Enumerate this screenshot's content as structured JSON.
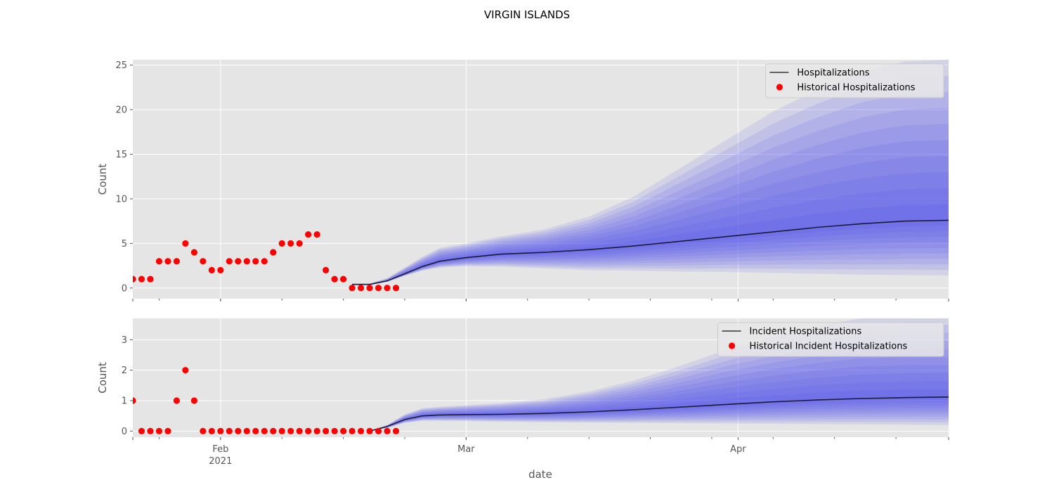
{
  "figure": {
    "title": "VIRGIN ISLANDS",
    "xlabel": "date"
  },
  "chart_data": [
    {
      "type": "line",
      "ylabel": "Count",
      "ylim": [
        -1.2,
        25.6
      ],
      "yticks": [
        0,
        5,
        10,
        15,
        20,
        25
      ],
      "grid": true,
      "legend_position": "top-right",
      "legend": [
        "Hospitalizations",
        "Historical Hospitalizations"
      ],
      "colors": {
        "historical": "#ff0000",
        "median": "#1a1a3a",
        "band": "#4a4af0",
        "plot_bg": "#e5e5e5",
        "grid": "#ffffff"
      },
      "historical": {
        "name": "Historical Hospitalizations",
        "x": [
          "2021-01-22",
          "2021-01-23",
          "2021-01-24",
          "2021-01-25",
          "2021-01-26",
          "2021-01-27",
          "2021-01-28",
          "2021-01-29",
          "2021-01-30",
          "2021-01-31",
          "2021-02-01",
          "2021-02-02",
          "2021-02-03",
          "2021-02-04",
          "2021-02-05",
          "2021-02-06",
          "2021-02-07",
          "2021-02-08",
          "2021-02-09",
          "2021-02-10",
          "2021-02-11",
          "2021-02-12",
          "2021-02-13",
          "2021-02-14",
          "2021-02-15",
          "2021-02-16",
          "2021-02-17",
          "2021-02-18",
          "2021-02-19",
          "2021-02-20",
          "2021-02-21"
        ],
        "y": [
          1,
          1,
          1,
          3,
          3,
          3,
          5,
          4,
          3,
          2,
          2,
          3,
          3,
          3,
          3,
          3,
          4,
          5,
          5,
          5,
          6,
          6,
          2,
          1,
          1,
          0,
          0,
          0,
          0,
          0,
          0
        ]
      },
      "forecast": {
        "name": "Hospitalizations",
        "x": [
          "2021-02-16",
          "2021-02-18",
          "2021-02-20",
          "2021-02-22",
          "2021-02-24",
          "2021-02-26",
          "2021-03-01",
          "2021-03-05",
          "2021-03-10",
          "2021-03-15",
          "2021-03-20",
          "2021-03-25",
          "2021-03-31",
          "2021-04-05",
          "2021-04-10",
          "2021-04-15",
          "2021-04-20",
          "2021-04-25"
        ],
        "median": [
          0.4,
          0.4,
          0.8,
          1.6,
          2.4,
          3.0,
          3.4,
          3.8,
          4.0,
          4.3,
          4.7,
          5.2,
          5.8,
          6.3,
          6.8,
          7.2,
          7.5,
          7.6
        ],
        "lower": [
          0.4,
          0.35,
          0.7,
          1.35,
          1.95,
          2.3,
          2.45,
          2.4,
          2.2,
          2.0,
          1.95,
          1.85,
          1.8,
          1.7,
          1.6,
          1.5,
          1.45,
          1.4
        ],
        "upper": [
          0.5,
          0.5,
          1.1,
          2.3,
          3.5,
          4.5,
          5.0,
          5.8,
          6.6,
          8.0,
          10.2,
          13.2,
          16.8,
          19.8,
          22.2,
          24.2,
          25.4,
          25.6
        ]
      }
    },
    {
      "type": "line",
      "ylabel": "Count",
      "ylim": [
        -0.2,
        3.7
      ],
      "yticks": [
        0,
        1,
        2,
        3
      ],
      "grid": true,
      "legend_position": "top-right",
      "legend": [
        "Incident Hospitalizations",
        "Historical Incident Hospitalizations"
      ],
      "colors": {
        "historical": "#ff0000",
        "median": "#1a1a3a",
        "band": "#4a4af0",
        "plot_bg": "#e5e5e5",
        "grid": "#ffffff"
      },
      "historical": {
        "name": "Historical Incident Hospitalizations",
        "x": [
          "2021-01-22",
          "2021-01-23",
          "2021-01-24",
          "2021-01-25",
          "2021-01-26",
          "2021-01-27",
          "2021-01-28",
          "2021-01-29",
          "2021-01-30",
          "2021-01-31",
          "2021-02-01",
          "2021-02-02",
          "2021-02-03",
          "2021-02-04",
          "2021-02-05",
          "2021-02-06",
          "2021-02-07",
          "2021-02-08",
          "2021-02-09",
          "2021-02-10",
          "2021-02-11",
          "2021-02-12",
          "2021-02-13",
          "2021-02-14",
          "2021-02-15",
          "2021-02-16",
          "2021-02-17",
          "2021-02-18",
          "2021-02-19",
          "2021-02-20",
          "2021-02-21"
        ],
        "y": [
          1,
          0,
          0,
          0,
          0,
          1,
          2,
          1,
          0,
          0,
          0,
          0,
          0,
          0,
          0,
          0,
          0,
          0,
          0,
          0,
          0,
          0,
          0,
          0,
          0,
          0,
          0,
          0,
          0,
          0,
          0
        ]
      },
      "forecast": {
        "name": "Incident Hospitalizations",
        "x": [
          "2021-02-18",
          "2021-02-20",
          "2021-02-22",
          "2021-02-24",
          "2021-02-26",
          "2021-03-01",
          "2021-03-05",
          "2021-03-10",
          "2021-03-15",
          "2021-03-20",
          "2021-03-25",
          "2021-03-31",
          "2021-04-05",
          "2021-04-10",
          "2021-04-15",
          "2021-04-20",
          "2021-04-25"
        ],
        "median": [
          0.0,
          0.15,
          0.38,
          0.5,
          0.53,
          0.54,
          0.55,
          0.58,
          0.63,
          0.7,
          0.78,
          0.88,
          0.96,
          1.02,
          1.07,
          1.1,
          1.12
        ],
        "lower": [
          0.0,
          0.1,
          0.27,
          0.34,
          0.34,
          0.33,
          0.31,
          0.29,
          0.28,
          0.27,
          0.26,
          0.25,
          0.24,
          0.23,
          0.22,
          0.21,
          0.2
        ],
        "upper": [
          0.0,
          0.2,
          0.55,
          0.75,
          0.8,
          0.85,
          0.92,
          1.05,
          1.3,
          1.65,
          2.1,
          2.7,
          3.1,
          3.45,
          3.7,
          3.75,
          3.75
        ]
      }
    }
  ],
  "x_axis": {
    "range": [
      "2021-01-22",
      "2021-04-25"
    ],
    "ticks": [
      {
        "date": "2021-02-01",
        "label": "Feb",
        "label2": "2021"
      },
      {
        "date": "2021-03-01",
        "label": "Mar",
        "label2": ""
      },
      {
        "date": "2021-04-01",
        "label": "Apr",
        "label2": ""
      }
    ]
  }
}
